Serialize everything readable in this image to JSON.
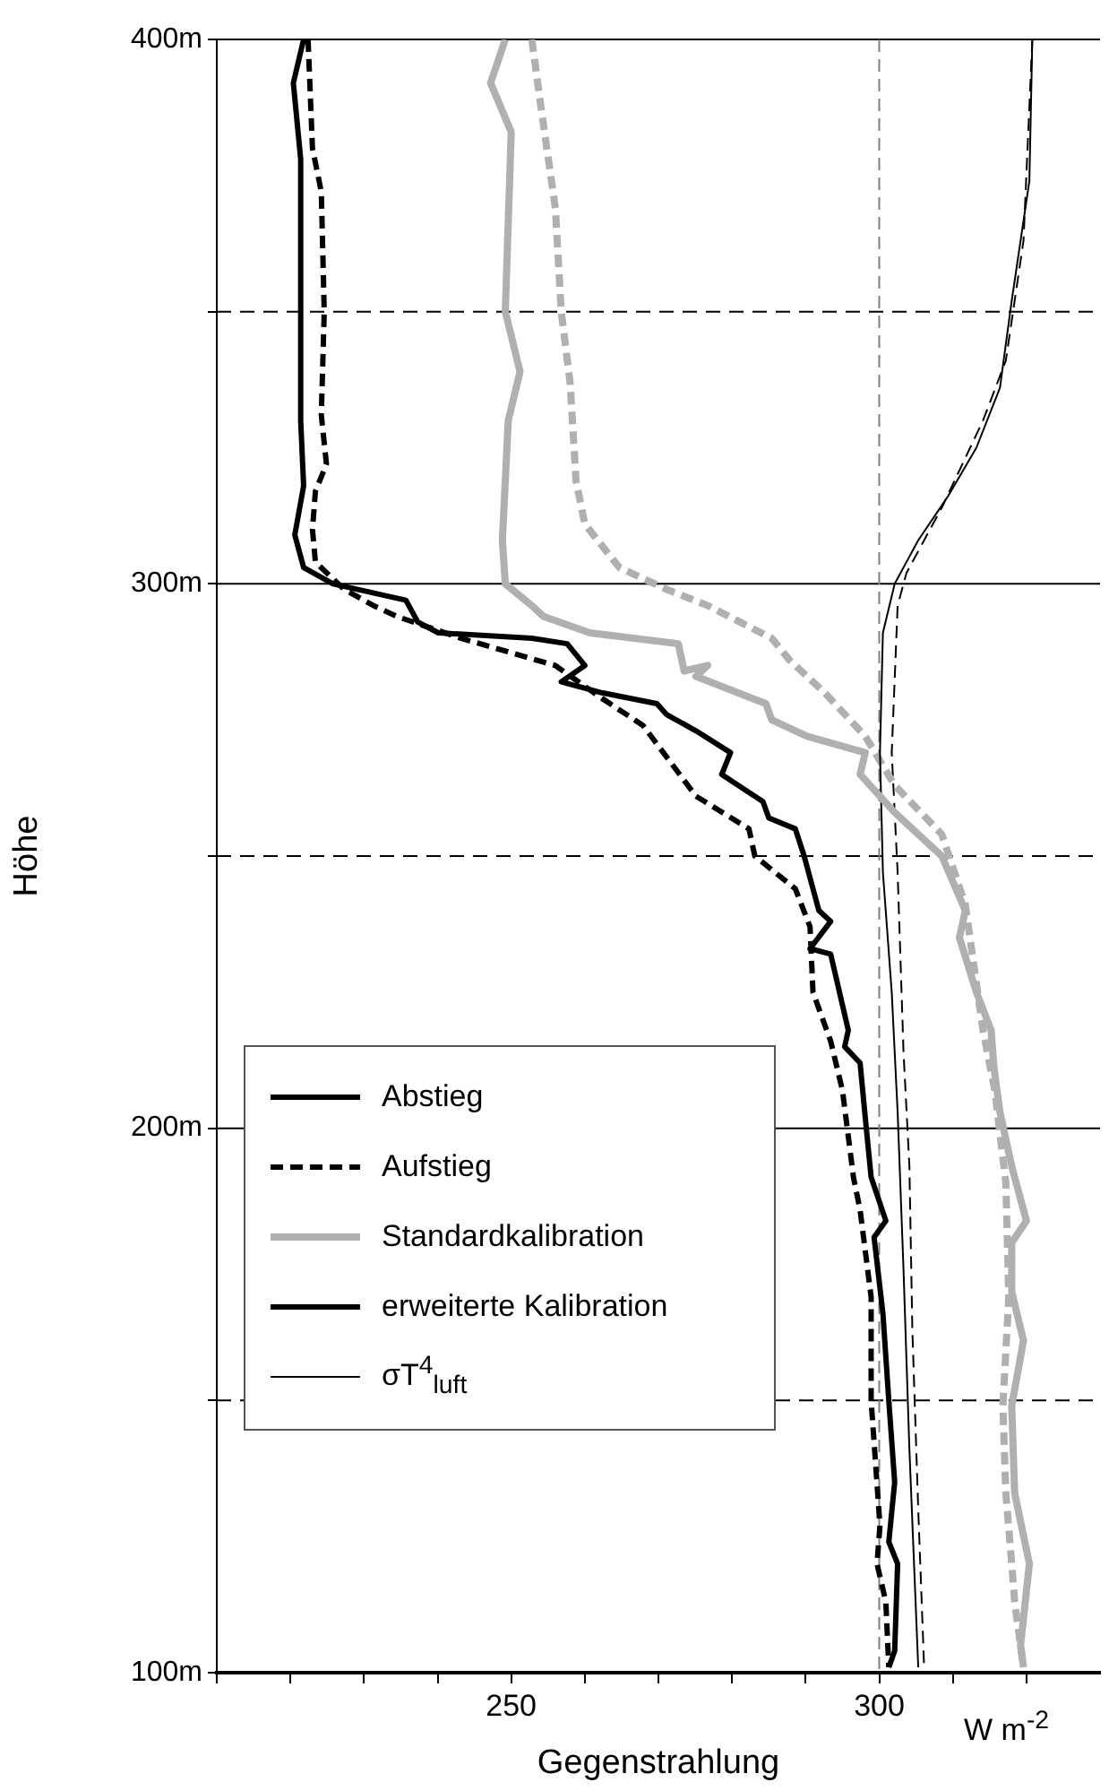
{
  "chart_data": {
    "type": "line",
    "xlabel": "Gegenstrahlung",
    "ylabel": "Höhe",
    "xlim": [
      210,
      330
    ],
    "ylim": [
      100,
      400
    ],
    "xticks": [
      {
        "value": 210,
        "label": null
      },
      {
        "value": 220,
        "label": null
      },
      {
        "value": 230,
        "label": null
      },
      {
        "value": 240,
        "label": null
      },
      250,
      {
        "value": 260,
        "label": null
      },
      {
        "value": 270,
        "label": null
      },
      {
        "value": 280,
        "label": null
      },
      {
        "value": 290,
        "label": null
      },
      300,
      {
        "value": 310,
        "label": null
      },
      {
        "value": 320,
        "label": null
      }
    ],
    "yticks": [
      {
        "value": 100,
        "label": "100m"
      },
      {
        "value": 150,
        "label": null
      },
      {
        "value": 200,
        "label": "200m"
      },
      {
        "value": 250,
        "label": null
      },
      {
        "value": 300,
        "label": "300m"
      },
      {
        "value": 350,
        "label": null
      },
      {
        "value": 400,
        "label": "400m"
      }
    ],
    "grid": "y",
    "legend": "bottom left",
    "annotations": [
      "W m$^{-2}$",
      "erweiterte Kalibration"
    ],
    "ref_lines": [
      {
        "axis": "x",
        "value": 300,
        "color": "#808080",
        "line_style": "dashed"
      }
    ],
    "series": [
      {
        "name": "Abstieg",
        "color": "#000000",
        "line_style": "solid",
        "x": [
          221.8,
          220.4,
          221.4,
          221.4,
          221.8,
          220.6,
          221.8,
          225.8,
          235.7,
          237.3,
          240.1,
          252.8,
          257.6,
          260,
          256.8,
          262.3,
          269.8,
          271.1,
          275.1,
          279.8,
          278.6,
          284.2,
          285,
          288.6,
          289.8,
          291.8,
          293.4,
          290.6,
          293.4,
          295.8,
          295.3,
          297.4,
          298.1,
          298.9,
          300.9,
          299.3,
          300.5,
          301.3,
          302.1,
          301.3,
          302.5,
          302.1,
          301.3
        ],
        "values": [
          400,
          392,
          378,
          330,
          318,
          309,
          303,
          300,
          297,
          293,
          291,
          290,
          289,
          285,
          282,
          280,
          278,
          276,
          273,
          269,
          265,
          260,
          257,
          255,
          250,
          240,
          238,
          233,
          232,
          218,
          215,
          212,
          202,
          191,
          183,
          180,
          166,
          150,
          135,
          124,
          120,
          104,
          101
        ]
      },
      {
        "name": "Aufstieg",
        "color": "#000000",
        "line_style": "dashed",
        "x": [
          222.4,
          223,
          224.2,
          224.6,
          224.2,
          224.9,
          223.4,
          223,
          223.4,
          227.3,
          231.3,
          234.5,
          243.2,
          256,
          262.3,
          267.9,
          275.1,
          282.3,
          283.1,
          288.6,
          290.6,
          291,
          293.4,
          295,
          296.5,
          297.4,
          298.9,
          298.9,
          300.1,
          299.7,
          300.9,
          301.3
        ],
        "values": [
          400,
          380,
          372,
          350,
          331,
          322,
          317,
          310,
          304,
          299,
          296,
          294,
          290,
          285,
          279,
          274,
          261,
          255,
          250,
          244,
          237,
          225,
          216,
          207,
          191,
          185,
          169,
          150,
          127,
          120,
          113,
          101
        ]
      },
      {
        "name": "Standardkalibration",
        "color": "#b0b0b0",
        "line_style": "solid",
        "x": [
          249.2,
          247.2,
          250,
          249.2,
          251.2,
          249.6,
          248.8,
          249.2,
          252.8,
          254.4,
          260.7,
          272.7,
          273.5,
          276.7,
          275.1,
          284.6,
          285.4,
          290.2,
          298.1,
          297.4,
          302.1,
          308.5,
          311.7,
          310.9,
          313.2,
          315.2,
          315.6,
          316.4,
          318,
          320,
          318,
          318,
          319.6,
          318,
          318.4,
          320.4,
          319.2,
          319.6
        ],
        "values": [
          400,
          392,
          383,
          350,
          339,
          330,
          308,
          300,
          296,
          294,
          291,
          289,
          284,
          285,
          283,
          278,
          275,
          272,
          269,
          265,
          258,
          250,
          240,
          235,
          225,
          218,
          211,
          203,
          193,
          183,
          179,
          170,
          161,
          149,
          133,
          120,
          105,
          101
        ]
      },
      {
        "name": "σT$^{4}$$_{luft}$",
        "color": "#000000",
        "line_style": "solid",
        "x": [
          320.8,
          320.4,
          318,
          316.4,
          313.2,
          309.3,
          305.3,
          302.1,
          300.5,
          300.1,
          300.5,
          301.7,
          302.5,
          303.3,
          304.1,
          305.3
        ],
        "values": [
          400,
          374,
          352,
          336,
          325,
          316,
          308,
          300,
          291,
          269,
          247,
          225,
          203,
          174,
          141,
          101
        ]
      },
      {
        "color": "#b0b0b0",
        "line_style": "dashed",
        "x": [
          252.8,
          254,
          256,
          256.8,
          258,
          258.8,
          260,
          264.7,
          271.1,
          276.7,
          285.4,
          287.8,
          292.6,
          298.1,
          302.1,
          308.5,
          311.7,
          314.1,
          315.7,
          317.2,
          317.6,
          316.8,
          317.2,
          318,
          318.4,
          319.6
        ],
        "values": [
          400,
          388,
          369,
          350,
          337,
          319,
          311,
          303,
          299,
          296,
          290,
          286,
          280,
          272,
          263,
          254,
          241,
          218,
          207,
          190,
          169,
          149,
          133,
          120,
          113,
          101
        ]
      },
      {
        "color": "#000000",
        "line_style": "dashed",
        "x": [
          320.8,
          319.6,
          317.2,
          314.1,
          308.5,
          303.7,
          302.5,
          301.7,
          302.5,
          303.3,
          304.1,
          304.5,
          305.3,
          306.1
        ],
        "values": [
          400,
          363,
          341,
          330,
          314,
          302,
          296,
          269,
          247,
          214,
          193,
          163,
          130,
          101
        ]
      }
    ]
  }
}
